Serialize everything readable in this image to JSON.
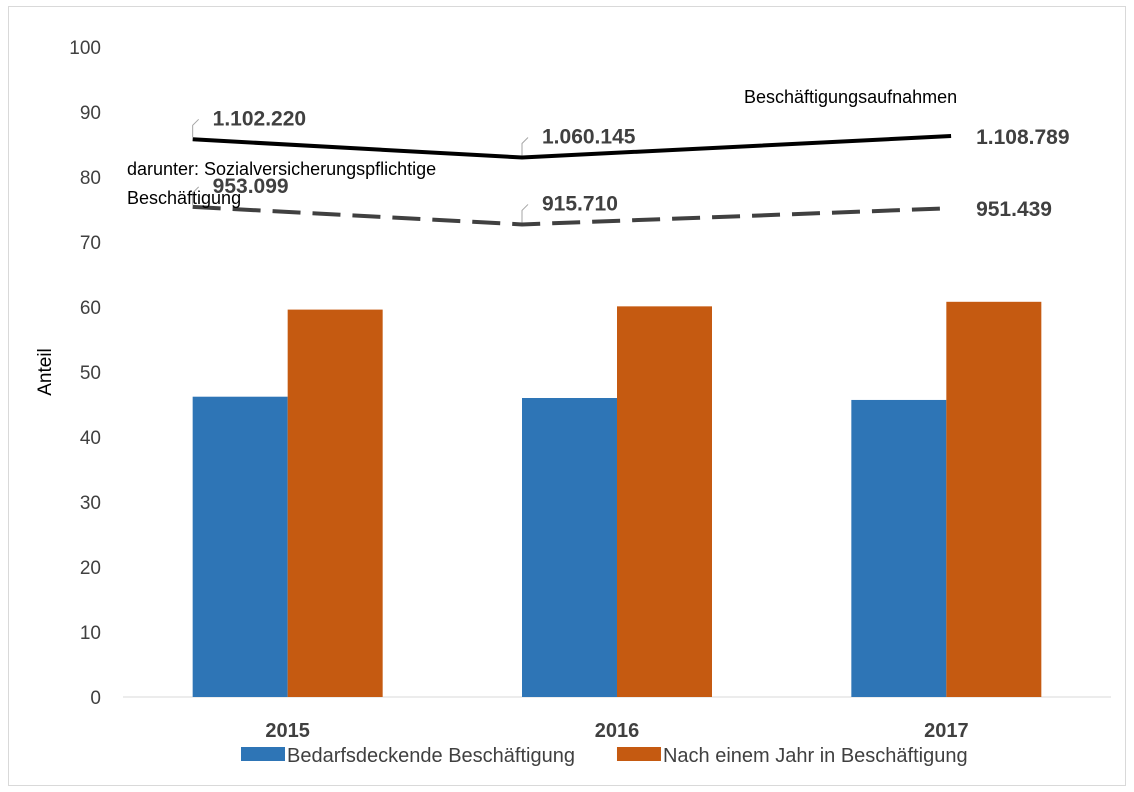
{
  "chart_data": {
    "type": "bar",
    "categories": [
      "2015",
      "2016",
      "2017"
    ],
    "ylabel": "Anteil",
    "ylim": [
      0,
      100
    ],
    "yticks": [
      "0",
      "10",
      "20",
      "30",
      "40",
      "50",
      "60",
      "70",
      "80",
      "90",
      "100"
    ],
    "series": [
      {
        "name": "Bedarfsdeckende Beschäftigung",
        "color": "#2e75b6",
        "values": [
          46.2,
          46.0,
          45.7
        ]
      },
      {
        "name": "Nach einem Jahr in Beschäftigung",
        "color": "#c55a11",
        "values": [
          59.6,
          60.1,
          60.8
        ]
      }
    ],
    "lines": [
      {
        "name": "Beschäftigungsaufnahmen",
        "style": "solid",
        "color": "#000000",
        "values": [
          85.8,
          83.0,
          86.3
        ],
        "labels": [
          "1.102.220",
          "1.060.145",
          "1.108.789"
        ]
      },
      {
        "name": "darunter: Sozialversicherungspflichtige Beschäftigung",
        "name_lines": [
          "darunter: Sozialversicherungspflichtige",
          "Beschäftigung"
        ],
        "style": "dashed",
        "color": "#404040",
        "values": [
          75.4,
          72.7,
          75.2
        ],
        "labels": [
          "953.099",
          "915.710",
          "951.439"
        ]
      }
    ],
    "grid": false,
    "legend_position": "bottom"
  }
}
